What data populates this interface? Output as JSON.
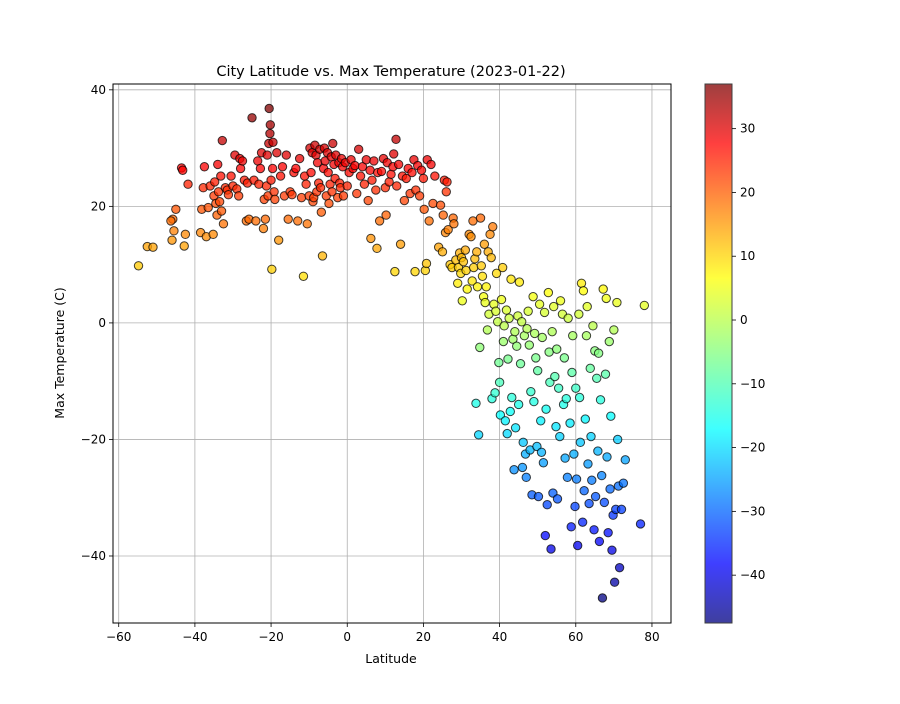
{
  "chart_data": {
    "type": "scatter",
    "title": "City Latitude vs. Max Temperature (2023-01-22)",
    "xlabel": "Latitude",
    "ylabel": "Max Temperature (C)",
    "xlim": [
      -61.5,
      85
    ],
    "ylim": [
      -51.5,
      41
    ],
    "xticks": [
      -60,
      -40,
      -20,
      0,
      20,
      40,
      60,
      80
    ],
    "yticks": [
      -40,
      -20,
      0,
      20,
      40
    ],
    "grid": true,
    "colormap": "jet",
    "color_by": "y",
    "colorbar": {
      "range": [
        -47.5,
        37
      ],
      "ticks": [
        -40,
        -30,
        -20,
        -10,
        0,
        10,
        20,
        30
      ]
    },
    "marker": {
      "edgecolor": "#000000",
      "alpha": 0.75
    },
    "points": [
      [
        -54.8,
        9.8
      ],
      [
        -52.5,
        13.1
      ],
      [
        -51,
        13
      ],
      [
        -46,
        14.2
      ],
      [
        -45.5,
        15.8
      ],
      [
        -45.8,
        17.8
      ],
      [
        -46.3,
        17.5
      ],
      [
        -45,
        19.5
      ],
      [
        -43.5,
        26.6
      ],
      [
        -43.2,
        26.2
      ],
      [
        -42.8,
        13.2
      ],
      [
        -42.5,
        15.2
      ],
      [
        -41.8,
        23.8
      ],
      [
        -38.5,
        15.5
      ],
      [
        -38.2,
        19.5
      ],
      [
        -37.8,
        23.2
      ],
      [
        -37.5,
        26.8
      ],
      [
        -37,
        14.8
      ],
      [
        -36.5,
        19.8
      ],
      [
        -36,
        23.5
      ],
      [
        -35.2,
        15.2
      ],
      [
        -35,
        21.8
      ],
      [
        -34.8,
        24.2
      ],
      [
        -34.5,
        20.5
      ],
      [
        -34.2,
        18.5
      ],
      [
        -34,
        27.2
      ],
      [
        -33.8,
        22.5
      ],
      [
        -33.5,
        20.8
      ],
      [
        -33.2,
        25.2
      ],
      [
        -33,
        19.2
      ],
      [
        -32.8,
        31.3
      ],
      [
        -32.5,
        17
      ],
      [
        -32,
        23.2
      ],
      [
        -31.5,
        22.8
      ],
      [
        -31.2,
        22
      ],
      [
        -30.5,
        25.2
      ],
      [
        -30,
        23.5
      ],
      [
        -29.5,
        28.8
      ],
      [
        -29,
        23
      ],
      [
        -28.5,
        21.8
      ],
      [
        -28.2,
        28.2
      ],
      [
        -28,
        26.5
      ],
      [
        -27.5,
        27.8
      ],
      [
        -27,
        24.5
      ],
      [
        -26.5,
        17.5
      ],
      [
        -26.2,
        24
      ],
      [
        -25.8,
        17.8
      ],
      [
        -25,
        35.2
      ],
      [
        -24.5,
        24.5
      ],
      [
        -24,
        17.5
      ],
      [
        -23.5,
        27.8
      ],
      [
        -23.2,
        23.8
      ],
      [
        -22.8,
        26.5
      ],
      [
        -22.5,
        29.2
      ],
      [
        -22,
        16.2
      ],
      [
        -21.8,
        21.2
      ],
      [
        -21.5,
        17.8
      ],
      [
        -21.2,
        23.5
      ],
      [
        -21,
        28.8
      ],
      [
        -20.8,
        21.8
      ],
      [
        -20.6,
        30.8
      ],
      [
        -20.5,
        36.8
      ],
      [
        -20.3,
        32.5
      ],
      [
        -20.2,
        34
      ],
      [
        -20,
        24.5
      ],
      [
        -19.8,
        9.2
      ],
      [
        -19.6,
        26.5
      ],
      [
        -19.5,
        31
      ],
      [
        -19.2,
        22.5
      ],
      [
        -19,
        21.2
      ],
      [
        -18.5,
        29.2
      ],
      [
        -18,
        14.2
      ],
      [
        -17.5,
        25.2
      ],
      [
        -17,
        26.8
      ],
      [
        -16.5,
        21.8
      ],
      [
        -16,
        28.8
      ],
      [
        -15.5,
        17.8
      ],
      [
        -15,
        22.5
      ],
      [
        -14.5,
        22
      ],
      [
        -14,
        25.8
      ],
      [
        -13.5,
        26.5
      ],
      [
        -13,
        17.5
      ],
      [
        -12.5,
        28.2
      ],
      [
        -12,
        21.5
      ],
      [
        -11.5,
        8
      ],
      [
        -11.2,
        25.2
      ],
      [
        -10.8,
        23.8
      ],
      [
        -10.5,
        17
      ],
      [
        -10,
        21.8
      ],
      [
        -9.8,
        30
      ],
      [
        -9.5,
        25.8
      ],
      [
        -9.2,
        29.2
      ],
      [
        -9,
        20.8
      ],
      [
        -8.8,
        21.5
      ],
      [
        -8.5,
        30.5
      ],
      [
        -8.2,
        28.8
      ],
      [
        -8,
        22.5
      ],
      [
        -7.8,
        27.5
      ],
      [
        -7.5,
        24
      ],
      [
        -7.2,
        29.8
      ],
      [
        -7,
        23.2
      ],
      [
        -6.8,
        19
      ],
      [
        -6.5,
        11.5
      ],
      [
        -6.2,
        26.5
      ],
      [
        -6,
        30
      ],
      [
        -5.8,
        27.8
      ],
      [
        -5.5,
        21.8
      ],
      [
        -5.2,
        29.2
      ],
      [
        -5,
        25.8
      ],
      [
        -4.8,
        20.5
      ],
      [
        -4.5,
        23.8
      ],
      [
        -4.2,
        28.5
      ],
      [
        -4,
        22.5
      ],
      [
        -3.8,
        30.8
      ],
      [
        -3.5,
        27.2
      ],
      [
        -3.2,
        24.8
      ],
      [
        -3,
        28.8
      ],
      [
        -2.5,
        21.5
      ],
      [
        -2.2,
        27.5
      ],
      [
        -2,
        24
      ],
      [
        -1.8,
        23.2
      ],
      [
        -1.5,
        28.2
      ],
      [
        -1.2,
        26.8
      ],
      [
        -1,
        21.8
      ],
      [
        -0.5,
        27.5
      ],
      [
        0,
        23.5
      ],
      [
        0.5,
        25.8
      ],
      [
        1,
        28
      ],
      [
        1.5,
        26.5
      ],
      [
        2,
        27
      ],
      [
        2.5,
        22.2
      ],
      [
        3,
        29.8
      ],
      [
        3.5,
        25.2
      ],
      [
        4,
        26.8
      ],
      [
        4.5,
        23.8
      ],
      [
        5,
        28
      ],
      [
        5.5,
        21
      ],
      [
        6,
        26.2
      ],
      [
        6.2,
        14.5
      ],
      [
        6.5,
        24.5
      ],
      [
        7,
        27.8
      ],
      [
        7.5,
        22.8
      ],
      [
        7.8,
        12.8
      ],
      [
        8,
        25.8
      ],
      [
        8.5,
        17.5
      ],
      [
        9,
        26
      ],
      [
        9.5,
        28.2
      ],
      [
        10,
        23.2
      ],
      [
        10.2,
        18.5
      ],
      [
        10.5,
        27.5
      ],
      [
        11,
        24.2
      ],
      [
        11.5,
        25.5
      ],
      [
        12,
        26.8
      ],
      [
        12.2,
        29
      ],
      [
        12.5,
        8.8
      ],
      [
        12.8,
        31.5
      ],
      [
        13,
        23.5
      ],
      [
        13.5,
        27.2
      ],
      [
        14,
        13.5
      ],
      [
        14.5,
        25.2
      ],
      [
        15,
        21
      ],
      [
        15.5,
        24.8
      ],
      [
        16,
        26.5
      ],
      [
        16.5,
        22.2
      ],
      [
        17,
        25.8
      ],
      [
        17.5,
        28
      ],
      [
        17.8,
        8.8
      ],
      [
        18,
        22.8
      ],
      [
        18.5,
        27
      ],
      [
        19,
        21.8
      ],
      [
        19.5,
        26.2
      ],
      [
        20,
        24.8
      ],
      [
        20.2,
        19.5
      ],
      [
        20.5,
        9
      ],
      [
        20.8,
        10.2
      ],
      [
        21,
        28
      ],
      [
        21.5,
        17.5
      ],
      [
        22,
        27.2
      ],
      [
        22.5,
        20.5
      ],
      [
        23,
        25.2
      ],
      [
        24,
        13
      ],
      [
        24.5,
        20.2
      ],
      [
        25,
        12.2
      ],
      [
        25.2,
        18.5
      ],
      [
        25.5,
        24.5
      ],
      [
        25.8,
        15.5
      ],
      [
        26,
        22.5
      ],
      [
        26.2,
        24.2
      ],
      [
        26.5,
        16
      ],
      [
        27,
        10
      ],
      [
        27.5,
        9.5
      ],
      [
        27.8,
        18
      ],
      [
        28,
        17
      ],
      [
        28.5,
        10.8
      ],
      [
        29,
        6.8
      ],
      [
        29.2,
        9.5
      ],
      [
        29.5,
        12
      ],
      [
        29.8,
        8.5
      ],
      [
        30,
        11.2
      ],
      [
        30.2,
        3.8
      ],
      [
        30.5,
        10.5
      ],
      [
        31,
        12.5
      ],
      [
        31.2,
        9
      ],
      [
        31.5,
        5.8
      ],
      [
        32,
        15.2
      ],
      [
        32.5,
        14.8
      ],
      [
        32.8,
        7.2
      ],
      [
        33,
        17.5
      ],
      [
        33.2,
        9.5
      ],
      [
        33.5,
        11
      ],
      [
        33.8,
        -13.8
      ],
      [
        34,
        12.2
      ],
      [
        34.2,
        6.2
      ],
      [
        34.5,
        -19.2
      ],
      [
        34.8,
        -4.2
      ],
      [
        35,
        18
      ],
      [
        35.2,
        9.8
      ],
      [
        35.5,
        8
      ],
      [
        35.8,
        4.5
      ],
      [
        36,
        13.5
      ],
      [
        36.2,
        3.5
      ],
      [
        36.5,
        6.2
      ],
      [
        36.8,
        -1.2
      ],
      [
        37,
        12.2
      ],
      [
        37.2,
        1.5
      ],
      [
        37.5,
        15.2
      ],
      [
        37.8,
        11.2
      ],
      [
        38,
        -13
      ],
      [
        38.2,
        16.5
      ],
      [
        38.5,
        3.2
      ],
      [
        38.8,
        -12
      ],
      [
        39,
        2
      ],
      [
        39.2,
        8.5
      ],
      [
        39.5,
        0.2
      ],
      [
        39.8,
        -6.8
      ],
      [
        40,
        -10.2
      ],
      [
        40.2,
        -15.8
      ],
      [
        40.5,
        4
      ],
      [
        40.8,
        9.5
      ],
      [
        41,
        -3.2
      ],
      [
        41.2,
        -0.5
      ],
      [
        41.5,
        -16.8
      ],
      [
        41.8,
        2.2
      ],
      [
        42,
        -19
      ],
      [
        42.2,
        -6.2
      ],
      [
        42.5,
        0.8
      ],
      [
        42.8,
        -15.2
      ],
      [
        43,
        7.5
      ],
      [
        43.2,
        -12.8
      ],
      [
        43.5,
        -2.8
      ],
      [
        43.8,
        -25.2
      ],
      [
        44,
        -1.5
      ],
      [
        44.2,
        -18
      ],
      [
        44.5,
        -4
      ],
      [
        44.8,
        1.2
      ],
      [
        45,
        -14
      ],
      [
        45.2,
        7
      ],
      [
        45.5,
        -7
      ],
      [
        45.8,
        0.2
      ],
      [
        46,
        -24.8
      ],
      [
        46.2,
        -20.5
      ],
      [
        46.5,
        -2.2
      ],
      [
        46.8,
        -22.5
      ],
      [
        47,
        -26.5
      ],
      [
        47.2,
        -1
      ],
      [
        47.5,
        2
      ],
      [
        47.8,
        -3.8
      ],
      [
        48,
        -21.8
      ],
      [
        48.2,
        -11.8
      ],
      [
        48.5,
        -29.5
      ],
      [
        48.8,
        4.5
      ],
      [
        49,
        -13.5
      ],
      [
        49.2,
        -1.8
      ],
      [
        49.5,
        -6
      ],
      [
        49.8,
        -21.2
      ],
      [
        50,
        -8.2
      ],
      [
        50.2,
        -29.8
      ],
      [
        50.5,
        3.2
      ],
      [
        50.8,
        -16.8
      ],
      [
        51,
        -22.2
      ],
      [
        51.2,
        -2.5
      ],
      [
        51.5,
        -24
      ],
      [
        51.8,
        1.8
      ],
      [
        52,
        -36.5
      ],
      [
        52.2,
        -14.8
      ],
      [
        52.5,
        -31.2
      ],
      [
        52.8,
        5.2
      ],
      [
        53,
        -5
      ],
      [
        53.2,
        -10.2
      ],
      [
        53.5,
        -38.8
      ],
      [
        53.8,
        -1.5
      ],
      [
        54,
        -29.2
      ],
      [
        54.2,
        2.8
      ],
      [
        54.5,
        -9.2
      ],
      [
        54.8,
        -17.8
      ],
      [
        55,
        -4.5
      ],
      [
        55.2,
        -30.2
      ],
      [
        55.5,
        -11.2
      ],
      [
        55.8,
        -19.5
      ],
      [
        56,
        3.8
      ],
      [
        56.5,
        1.5
      ],
      [
        56.8,
        -14
      ],
      [
        57,
        -6
      ],
      [
        57.2,
        -23.2
      ],
      [
        57.5,
        -13
      ],
      [
        57.8,
        -26.5
      ],
      [
        58,
        0.8
      ],
      [
        58.5,
        -17.2
      ],
      [
        58.8,
        -35
      ],
      [
        59,
        -8.5
      ],
      [
        59.2,
        -2.2
      ],
      [
        59.5,
        -22.5
      ],
      [
        59.8,
        -31.5
      ],
      [
        60,
        -11.2
      ],
      [
        60.2,
        -26.8
      ],
      [
        60.5,
        -38.2
      ],
      [
        60.8,
        1.5
      ],
      [
        61,
        -12.8
      ],
      [
        61.2,
        -20.5
      ],
      [
        61.5,
        6.8
      ],
      [
        61.8,
        -34.2
      ],
      [
        62,
        5.5
      ],
      [
        62.2,
        -28.8
      ],
      [
        62.5,
        -16.5
      ],
      [
        62.8,
        -2.2
      ],
      [
        63,
        2.8
      ],
      [
        63.2,
        -24.2
      ],
      [
        63.5,
        -31
      ],
      [
        63.8,
        -7.8
      ],
      [
        64,
        -19.5
      ],
      [
        64.2,
        -27
      ],
      [
        64.5,
        -0.5
      ],
      [
        64.8,
        -35.5
      ],
      [
        65,
        -4.8
      ],
      [
        65.2,
        -29.8
      ],
      [
        65.5,
        -9.5
      ],
      [
        65.8,
        -22
      ],
      [
        66,
        -5.2
      ],
      [
        66.2,
        -37.5
      ],
      [
        66.5,
        -13.2
      ],
      [
        66.8,
        -26.2
      ],
      [
        67,
        -47.2
      ],
      [
        67.2,
        5.8
      ],
      [
        67.5,
        -30.8
      ],
      [
        67.8,
        -8.8
      ],
      [
        68,
        4.2
      ],
      [
        68.2,
        -23
      ],
      [
        68.5,
        -36
      ],
      [
        68.8,
        -3.2
      ],
      [
        69,
        -28.5
      ],
      [
        69.2,
        -16
      ],
      [
        69.5,
        -39
      ],
      [
        69.8,
        -33
      ],
      [
        70,
        -1.2
      ],
      [
        70.2,
        -44.5
      ],
      [
        70.5,
        -32
      ],
      [
        70.8,
        3.5
      ],
      [
        71,
        -20
      ],
      [
        71.2,
        -28
      ],
      [
        71.5,
        -42
      ],
      [
        72,
        -32
      ],
      [
        72.5,
        -27.5
      ],
      [
        73,
        -23.5
      ],
      [
        77,
        -34.5
      ],
      [
        78,
        3
      ]
    ]
  }
}
